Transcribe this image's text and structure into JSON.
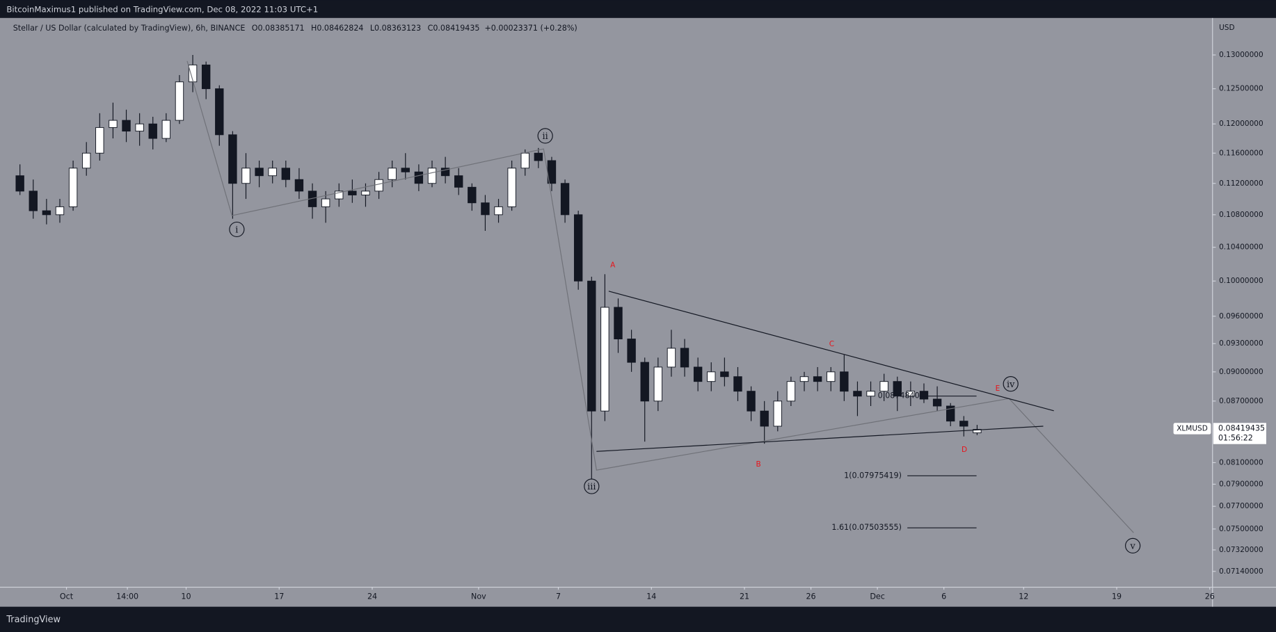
{
  "header": {
    "publisher": "BitcoinMaximus1 published on TradingView.com, Dec 08, 2022 11:03 UTC+1"
  },
  "legend": {
    "symbol": "Stellar / US Dollar (calculated by TradingView), 6h, BINANCE",
    "items": [
      {
        "key": "O",
        "value": "0.08385171"
      },
      {
        "key": "H",
        "value": "0.08462824"
      },
      {
        "key": "L",
        "value": "0.08363123"
      },
      {
        "key": "C",
        "value": "0.08419435"
      }
    ],
    "change": "+0.00023371 (+0.28%)"
  },
  "axis_unit": "USD",
  "price_label": {
    "ticker": "XLMUSD",
    "price": "0.08419435",
    "countdown": "01:56:22"
  },
  "annotations": {
    "waves": [
      "i",
      "ii",
      "iii",
      "iv",
      "v"
    ],
    "abcde": [
      "A",
      "B",
      "C",
      "D",
      "E"
    ],
    "fib": [
      "1(0.07975419)",
      "1.61(0.07503555)",
      "0.0874840"
    ]
  },
  "footer": {
    "brand": "TradingView"
  },
  "chart_data": {
    "type": "candlestick",
    "log_scale": true,
    "grid": false,
    "up_color": "#ffffff",
    "down_color": "#131722",
    "wick_color": "#131722",
    "xlim": [
      "2022-09-26T00:00",
      "2022-12-26T05:00"
    ],
    "ylim": [
      0.0701,
      0.1357
    ],
    "xticks": [
      {
        "value": "2022-10-01",
        "label": "Oct"
      },
      {
        "value": "2022-10-05T14:00",
        "label": "14:00"
      },
      {
        "value": "2022-10-10",
        "label": "10"
      },
      {
        "value": "2022-10-17",
        "label": "17"
      },
      {
        "value": "2022-10-24",
        "label": "24"
      },
      {
        "value": "2022-11-01",
        "label": "Nov"
      },
      {
        "value": "2022-11-07",
        "label": "7"
      },
      {
        "value": "2022-11-14",
        "label": "14"
      },
      {
        "value": "2022-11-21",
        "label": "21"
      },
      {
        "value": "2022-11-26",
        "label": "26"
      },
      {
        "value": "2022-12-01",
        "label": "Dec"
      },
      {
        "value": "2022-12-06",
        "label": "6"
      },
      {
        "value": "2022-12-12",
        "label": "12"
      },
      {
        "value": "2022-12-19",
        "label": "19"
      },
      {
        "value": "2022-12-26",
        "label": "26"
      }
    ],
    "yticks": [
      {
        "value": 0.13,
        "label": "0.13000000"
      },
      {
        "value": 0.125,
        "label": "0.12500000"
      },
      {
        "value": 0.12,
        "label": "0.12000000"
      },
      {
        "value": 0.116,
        "label": "0.11600000"
      },
      {
        "value": 0.112,
        "label": "0.11200000"
      },
      {
        "value": 0.108,
        "label": "0.10800000"
      },
      {
        "value": 0.104,
        "label": "0.10400000"
      },
      {
        "value": 0.1,
        "label": "0.10000000"
      },
      {
        "value": 0.096,
        "label": "0.09600000"
      },
      {
        "value": 0.093,
        "label": "0.09300000"
      },
      {
        "value": 0.09,
        "label": "0.09000000"
      },
      {
        "value": 0.087,
        "label": "0.08700000"
      },
      {
        "value": 0.081,
        "label": "0.08100000"
      },
      {
        "value": 0.079,
        "label": "0.07900000"
      },
      {
        "value": 0.077,
        "label": "0.07700000"
      },
      {
        "value": 0.075,
        "label": "0.07500000"
      },
      {
        "value": 0.0732,
        "label": "0.07320000"
      },
      {
        "value": 0.0714,
        "label": "0.07140000"
      }
    ],
    "x": [
      "2022-09-27",
      "2022-09-28",
      "2022-09-29",
      "2022-09-30",
      "2022-10-01",
      "2022-10-02",
      "2022-10-03",
      "2022-10-04",
      "2022-10-05",
      "2022-10-06",
      "2022-10-07",
      "2022-10-08",
      "2022-10-09",
      "2022-10-10",
      "2022-10-11",
      "2022-10-12",
      "2022-10-13",
      "2022-10-14",
      "2022-10-15",
      "2022-10-16",
      "2022-10-17",
      "2022-10-18",
      "2022-10-19",
      "2022-10-20",
      "2022-10-21",
      "2022-10-22",
      "2022-10-23",
      "2022-10-24",
      "2022-10-25",
      "2022-10-26",
      "2022-10-27",
      "2022-10-28",
      "2022-10-29",
      "2022-10-30",
      "2022-10-31",
      "2022-11-01",
      "2022-11-02",
      "2022-11-03",
      "2022-11-04",
      "2022-11-05",
      "2022-11-06",
      "2022-11-07",
      "2022-11-08",
      "2022-11-09",
      "2022-11-10",
      "2022-11-11",
      "2022-11-12",
      "2022-11-13",
      "2022-11-14",
      "2022-11-15",
      "2022-11-16",
      "2022-11-17",
      "2022-11-18",
      "2022-11-19",
      "2022-11-20",
      "2022-11-21",
      "2022-11-22",
      "2022-11-23",
      "2022-11-24",
      "2022-11-25",
      "2022-11-26",
      "2022-11-27",
      "2022-11-28",
      "2022-11-29",
      "2022-11-30",
      "2022-12-01",
      "2022-12-02",
      "2022-12-03",
      "2022-12-04",
      "2022-12-05",
      "2022-12-06",
      "2022-12-07",
      "2022-12-08"
    ],
    "open": [
      0.113,
      0.111,
      0.1085,
      0.108,
      0.109,
      0.114,
      0.116,
      0.1195,
      0.1205,
      0.119,
      0.12,
      0.118,
      0.1205,
      0.126,
      0.1285,
      0.125,
      0.1185,
      0.112,
      0.114,
      0.113,
      0.114,
      0.1125,
      0.111,
      0.109,
      0.11,
      0.111,
      0.1105,
      0.111,
      0.1125,
      0.114,
      0.1135,
      0.112,
      0.114,
      0.113,
      0.1115,
      0.1095,
      0.108,
      0.109,
      0.114,
      0.116,
      0.115,
      0.112,
      0.108,
      0.1,
      0.086,
      0.097,
      0.0935,
      0.091,
      0.087,
      0.0905,
      0.0925,
      0.0905,
      0.089,
      0.09,
      0.0895,
      0.088,
      0.086,
      0.0845,
      0.087,
      0.089,
      0.0895,
      0.089,
      0.09,
      0.088,
      0.0875,
      0.088,
      0.089,
      0.0875,
      0.088,
      0.0872,
      0.0865,
      0.085,
      0.08385171
    ],
    "high": [
      0.1145,
      0.1125,
      0.11,
      0.11,
      0.115,
      0.1175,
      0.1215,
      0.123,
      0.122,
      0.1215,
      0.121,
      0.1215,
      0.127,
      0.13,
      0.129,
      0.1255,
      0.119,
      0.116,
      0.115,
      0.115,
      0.115,
      0.114,
      0.112,
      0.111,
      0.112,
      0.1125,
      0.112,
      0.1135,
      0.115,
      0.116,
      0.1145,
      0.115,
      0.1155,
      0.114,
      0.112,
      0.1105,
      0.11,
      0.115,
      0.1165,
      0.1167,
      0.1155,
      0.1125,
      0.1085,
      0.1005,
      0.1008,
      0.098,
      0.0945,
      0.0915,
      0.0915,
      0.0945,
      0.0935,
      0.0915,
      0.091,
      0.0915,
      0.0905,
      0.0885,
      0.087,
      0.088,
      0.0895,
      0.09,
      0.0905,
      0.0905,
      0.0918,
      0.089,
      0.089,
      0.0898,
      0.0895,
      0.089,
      0.0888,
      0.0885,
      0.0868,
      0.0855,
      0.08462824
    ],
    "low": [
      0.1105,
      0.1075,
      0.1068,
      0.107,
      0.1085,
      0.113,
      0.115,
      0.118,
      0.1175,
      0.117,
      0.1165,
      0.1175,
      0.12,
      0.1245,
      0.1235,
      0.117,
      0.1075,
      0.11,
      0.1115,
      0.112,
      0.1115,
      0.11,
      0.1075,
      0.107,
      0.109,
      0.1095,
      0.109,
      0.11,
      0.1115,
      0.1125,
      0.111,
      0.1115,
      0.112,
      0.1105,
      0.1085,
      0.106,
      0.107,
      0.1085,
      0.113,
      0.114,
      0.111,
      0.107,
      0.099,
      0.0795,
      0.085,
      0.092,
      0.09,
      0.083,
      0.086,
      0.0895,
      0.0895,
      0.088,
      0.088,
      0.0885,
      0.087,
      0.085,
      0.0828,
      0.084,
      0.0865,
      0.088,
      0.088,
      0.088,
      0.087,
      0.0855,
      0.0865,
      0.087,
      0.086,
      0.0865,
      0.0868,
      0.086,
      0.0845,
      0.0835,
      0.08363123
    ],
    "close": [
      0.111,
      0.1085,
      0.108,
      0.109,
      0.114,
      0.116,
      0.1195,
      0.1205,
      0.119,
      0.12,
      0.118,
      0.1205,
      0.126,
      0.1285,
      0.125,
      0.1185,
      0.112,
      0.114,
      0.113,
      0.114,
      0.1125,
      0.111,
      0.109,
      0.11,
      0.111,
      0.1105,
      0.111,
      0.1125,
      0.114,
      0.1135,
      0.112,
      0.114,
      0.113,
      0.1115,
      0.1095,
      0.108,
      0.109,
      0.114,
      0.116,
      0.115,
      0.112,
      0.108,
      0.1,
      0.086,
      0.097,
      0.0935,
      0.091,
      0.087,
      0.0905,
      0.0925,
      0.0905,
      0.089,
      0.09,
      0.0895,
      0.088,
      0.086,
      0.0845,
      0.087,
      0.089,
      0.0895,
      0.089,
      0.09,
      0.088,
      0.0875,
      0.088,
      0.089,
      0.0875,
      0.088,
      0.0872,
      0.0865,
      0.085,
      0.0845,
      0.08419435
    ]
  }
}
